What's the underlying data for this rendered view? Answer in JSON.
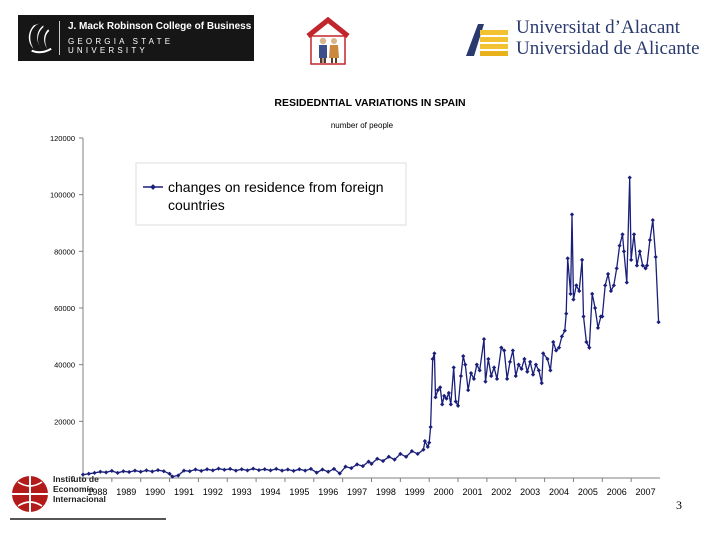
{
  "header": {
    "gsu": {
      "line1": "J. Mack Robinson College of Business",
      "line2": "GEORGIA STATE UNIVERSITY"
    },
    "ua": {
      "line1": "Universitat d’Alacant",
      "line2": "Universidad de Alicante"
    }
  },
  "footer": {
    "iei_lines": [
      "Instituto de",
      "Economía",
      "Internacional"
    ],
    "page_number": "3"
  },
  "colors": {
    "series": "#1a1f7a",
    "axis": "#808080",
    "gsu_red": "#b31b1b"
  },
  "chart_data": {
    "type": "line",
    "title": "RESIDEDNTIAL VARIATIONS IN SPAIN",
    "ylabel": "number of people",
    "ylim": [
      0,
      120000
    ],
    "yticks": [
      "0",
      "20000",
      "40000",
      "60000",
      "80000",
      "100000",
      "120000"
    ],
    "xticks": [
      "1988",
      "1989",
      "1990",
      "1991",
      "1992",
      "1993",
      "1994",
      "1995",
      "1996",
      "1997",
      "1998",
      "1999",
      "2000",
      "2001",
      "2002",
      "2003",
      "2004",
      "2005",
      "2006",
      "2007"
    ],
    "xlim": [
      1988,
      2008
    ],
    "legend": {
      "label": "changes on residence from foreign countries",
      "line1": "changes on residence from foreign",
      "line2": "countries",
      "position": "top-left"
    },
    "series": [
      {
        "name": "changes on residence from foreign countries",
        "points": [
          [
            1988.0,
            1200
          ],
          [
            1988.2,
            1500
          ],
          [
            1988.4,
            1800
          ],
          [
            1988.6,
            2200
          ],
          [
            1988.8,
            2000
          ],
          [
            1989.0,
            2500
          ],
          [
            1989.2,
            1800
          ],
          [
            1989.4,
            2400
          ],
          [
            1989.6,
            2100
          ],
          [
            1989.8,
            2600
          ],
          [
            1990.0,
            2200
          ],
          [
            1990.2,
            2700
          ],
          [
            1990.4,
            2300
          ],
          [
            1990.6,
            2800
          ],
          [
            1990.8,
            2400
          ],
          [
            1991.0,
            1500
          ],
          [
            1991.1,
            500
          ],
          [
            1991.3,
            900
          ],
          [
            1991.5,
            2600
          ],
          [
            1991.7,
            2400
          ],
          [
            1991.9,
            3000
          ],
          [
            1992.1,
            2500
          ],
          [
            1992.3,
            3100
          ],
          [
            1992.5,
            2700
          ],
          [
            1992.7,
            3300
          ],
          [
            1992.9,
            2900
          ],
          [
            1993.1,
            3200
          ],
          [
            1993.3,
            2600
          ],
          [
            1993.5,
            3100
          ],
          [
            1993.7,
            2700
          ],
          [
            1993.9,
            3300
          ],
          [
            1994.1,
            2800
          ],
          [
            1994.3,
            3100
          ],
          [
            1994.5,
            2700
          ],
          [
            1994.7,
            3200
          ],
          [
            1994.9,
            2600
          ],
          [
            1995.1,
            3000
          ],
          [
            1995.3,
            2500
          ],
          [
            1995.5,
            3100
          ],
          [
            1995.7,
            2600
          ],
          [
            1995.9,
            3200
          ],
          [
            1996.1,
            1900
          ],
          [
            1996.3,
            3000
          ],
          [
            1996.5,
            2200
          ],
          [
            1996.7,
            3200
          ],
          [
            1996.9,
            1600
          ],
          [
            1997.1,
            4000
          ],
          [
            1997.3,
            3500
          ],
          [
            1997.5,
            4800
          ],
          [
            1997.7,
            4200
          ],
          [
            1997.9,
            5800
          ],
          [
            1998.0,
            5000
          ],
          [
            1998.2,
            6800
          ],
          [
            1998.4,
            6000
          ],
          [
            1998.6,
            7500
          ],
          [
            1998.8,
            6500
          ],
          [
            1999.0,
            8500
          ],
          [
            1999.2,
            7500
          ],
          [
            1999.4,
            9500
          ],
          [
            1999.6,
            8500
          ],
          [
            1999.8,
            10000
          ],
          [
            1999.85,
            13000
          ],
          [
            1999.95,
            11000
          ],
          [
            2000.0,
            12500
          ],
          [
            2000.05,
            18000
          ],
          [
            2000.12,
            42000
          ],
          [
            2000.18,
            44000
          ],
          [
            2000.22,
            28500
          ],
          [
            2000.3,
            31000
          ],
          [
            2000.38,
            32000
          ],
          [
            2000.45,
            26000
          ],
          [
            2000.52,
            29000
          ],
          [
            2000.6,
            28000
          ],
          [
            2000.68,
            30000
          ],
          [
            2000.75,
            26000
          ],
          [
            2000.85,
            39000
          ],
          [
            2000.92,
            27000
          ],
          [
            2001.0,
            25500
          ],
          [
            2001.1,
            36000
          ],
          [
            2001.18,
            43000
          ],
          [
            2001.25,
            40000
          ],
          [
            2001.35,
            31000
          ],
          [
            2001.45,
            37000
          ],
          [
            2001.55,
            35000
          ],
          [
            2001.65,
            40000
          ],
          [
            2001.75,
            38000
          ],
          [
            2001.9,
            49000
          ],
          [
            2001.95,
            34000
          ],
          [
            2002.05,
            42000
          ],
          [
            2002.15,
            36000
          ],
          [
            2002.25,
            39000
          ],
          [
            2002.35,
            35000
          ],
          [
            2002.5,
            46000
          ],
          [
            2002.6,
            45000
          ],
          [
            2002.7,
            35000
          ],
          [
            2002.8,
            41000
          ],
          [
            2002.9,
            45000
          ],
          [
            2003.0,
            36000
          ],
          [
            2003.1,
            40000
          ],
          [
            2003.2,
            38500
          ],
          [
            2003.3,
            42000
          ],
          [
            2003.4,
            37500
          ],
          [
            2003.5,
            41000
          ],
          [
            2003.6,
            36500
          ],
          [
            2003.7,
            40000
          ],
          [
            2003.8,
            38000
          ],
          [
            2003.9,
            33500
          ],
          [
            2003.95,
            44000
          ],
          [
            2004.1,
            42000
          ],
          [
            2004.2,
            38000
          ],
          [
            2004.3,
            48000
          ],
          [
            2004.4,
            45000
          ],
          [
            2004.5,
            46000
          ],
          [
            2004.6,
            50000
          ],
          [
            2004.7,
            52000
          ],
          [
            2004.75,
            58000
          ],
          [
            2004.8,
            77500
          ],
          [
            2004.9,
            65000
          ],
          [
            2004.95,
            93000
          ],
          [
            2005.0,
            63000
          ],
          [
            2005.1,
            68000
          ],
          [
            2005.2,
            66000
          ],
          [
            2005.3,
            77000
          ],
          [
            2005.35,
            57000
          ],
          [
            2005.45,
            48000
          ],
          [
            2005.55,
            46000
          ],
          [
            2005.65,
            65000
          ],
          [
            2005.75,
            60000
          ],
          [
            2005.85,
            53000
          ],
          [
            2005.95,
            57000
          ],
          [
            2006.0,
            57000
          ],
          [
            2006.1,
            68000
          ],
          [
            2006.2,
            72000
          ],
          [
            2006.3,
            66000
          ],
          [
            2006.4,
            68000
          ],
          [
            2006.5,
            74000
          ],
          [
            2006.6,
            82000
          ],
          [
            2006.7,
            86000
          ],
          [
            2006.75,
            80000
          ],
          [
            2006.85,
            69000
          ],
          [
            2006.95,
            106000
          ],
          [
            2007.0,
            77000
          ],
          [
            2007.1,
            86000
          ],
          [
            2007.2,
            75000
          ],
          [
            2007.3,
            80000
          ],
          [
            2007.4,
            75000
          ],
          [
            2007.5,
            74000
          ],
          [
            2007.55,
            75000
          ],
          [
            2007.65,
            84000
          ],
          [
            2007.75,
            91000
          ],
          [
            2007.85,
            78000
          ],
          [
            2007.95,
            55000
          ]
        ]
      }
    ]
  }
}
